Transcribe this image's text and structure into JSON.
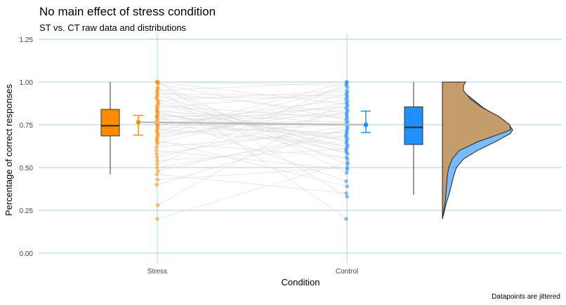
{
  "chart_data": {
    "type": "raincloud",
    "title": "No main effect of stress condition",
    "subtitle": "ST vs. CT raw data and distributions",
    "xlabel": "Condition",
    "ylabel": "Percentage of correct responses",
    "caption": "Datapoints are jittered",
    "categories": [
      "Stress",
      "Control"
    ],
    "ylim": [
      0,
      1.25
    ],
    "y_ticks": [
      0.0,
      0.25,
      0.5,
      0.75,
      1.0,
      1.25
    ],
    "y_tick_labels": [
      "0.00",
      "0.25",
      "0.50",
      "0.75",
      "1.00",
      "1.25"
    ],
    "grid": true,
    "colors": {
      "stress": "#ff8c00",
      "control": "#1e90ff",
      "grid": "#a8d0dc",
      "lines": "#d9d9d9",
      "mean_line": "#bdbdbd",
      "overlap": "#c99a63"
    },
    "series": [
      {
        "name": "Stress",
        "mean": 0.765,
        "ci": [
          0.69,
          0.805
        ],
        "boxplot": {
          "min": 0.46,
          "q1": 0.685,
          "median": 0.745,
          "q3": 0.84,
          "max": 1.0
        },
        "points": [
          1.0,
          1.0,
          1.0,
          1.0,
          0.99,
          0.97,
          0.96,
          0.95,
          0.94,
          0.93,
          0.92,
          0.91,
          0.9,
          0.89,
          0.88,
          0.87,
          0.86,
          0.85,
          0.84,
          0.83,
          0.83,
          0.82,
          0.81,
          0.8,
          0.8,
          0.79,
          0.78,
          0.77,
          0.76,
          0.75,
          0.75,
          0.74,
          0.73,
          0.72,
          0.71,
          0.7,
          0.69,
          0.68,
          0.67,
          0.66,
          0.65,
          0.64,
          0.62,
          0.6,
          0.58,
          0.56,
          0.54,
          0.52,
          0.5,
          0.48,
          0.46,
          0.43,
          0.4,
          0.28,
          0.2
        ]
      },
      {
        "name": "Control",
        "mean": 0.75,
        "ci": [
          0.705,
          0.83
        ],
        "boxplot": {
          "min": 0.34,
          "q1": 0.635,
          "median": 0.735,
          "q3": 0.855,
          "max": 1.0
        },
        "points": [
          1.0,
          1.0,
          0.99,
          0.98,
          0.97,
          0.95,
          0.94,
          0.93,
          0.92,
          0.91,
          0.9,
          0.89,
          0.88,
          0.87,
          0.86,
          0.85,
          0.84,
          0.83,
          0.82,
          0.81,
          0.8,
          0.79,
          0.78,
          0.77,
          0.76,
          0.75,
          0.74,
          0.73,
          0.72,
          0.71,
          0.7,
          0.69,
          0.68,
          0.67,
          0.66,
          0.65,
          0.64,
          0.63,
          0.62,
          0.61,
          0.6,
          0.59,
          0.58,
          0.56,
          0.55,
          0.53,
          0.52,
          0.5,
          0.49,
          0.47,
          0.42,
          0.39,
          0.35,
          0.33,
          0.2
        ]
      }
    ],
    "density_stress": [
      [
        0.2,
        0.0
      ],
      [
        0.25,
        0.02
      ],
      [
        0.3,
        0.04
      ],
      [
        0.35,
        0.05
      ],
      [
        0.4,
        0.06
      ],
      [
        0.45,
        0.07
      ],
      [
        0.5,
        0.09
      ],
      [
        0.55,
        0.14
      ],
      [
        0.6,
        0.24
      ],
      [
        0.65,
        0.5
      ],
      [
        0.7,
        0.84
      ],
      [
        0.72,
        0.97
      ],
      [
        0.75,
        0.96
      ],
      [
        0.8,
        0.8
      ],
      [
        0.85,
        0.57
      ],
      [
        0.9,
        0.4
      ],
      [
        0.95,
        0.3
      ],
      [
        0.98,
        0.3
      ],
      [
        1.0,
        0.33
      ]
    ],
    "density_control": [
      [
        0.2,
        0.0
      ],
      [
        0.25,
        0.03
      ],
      [
        0.3,
        0.06
      ],
      [
        0.35,
        0.1
      ],
      [
        0.4,
        0.13
      ],
      [
        0.45,
        0.16
      ],
      [
        0.5,
        0.2
      ],
      [
        0.55,
        0.3
      ],
      [
        0.6,
        0.5
      ],
      [
        0.65,
        0.75
      ],
      [
        0.7,
        0.97
      ],
      [
        0.72,
        1.0
      ],
      [
        0.75,
        0.95
      ],
      [
        0.8,
        0.78
      ],
      [
        0.85,
        0.58
      ],
      [
        0.9,
        0.43
      ],
      [
        0.95,
        0.27
      ],
      [
        0.98,
        0.2
      ],
      [
        1.0,
        0.27
      ]
    ]
  }
}
